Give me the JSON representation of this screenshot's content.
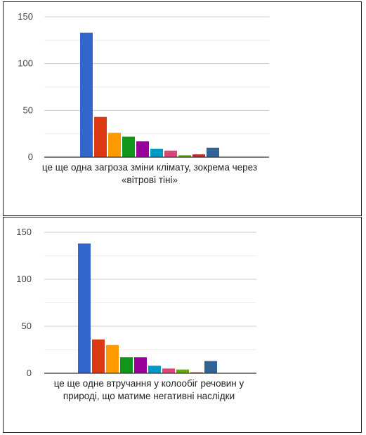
{
  "chart_data": [
    {
      "type": "bar",
      "category_label": [
        "це ще одна загроза зміни клімату, зокрема через",
        "«вітрові тіні»"
      ],
      "values": [
        133,
        43,
        26,
        22,
        17,
        9,
        7,
        2,
        3,
        10
      ],
      "ylim": [
        0,
        150
      ],
      "yticks": [
        0,
        50,
        100,
        150
      ],
      "colors": [
        "#3366cc",
        "#dc3912",
        "#ff9900",
        "#109618",
        "#990099",
        "#0099c6",
        "#dd4477",
        "#66aa00",
        "#b82e2e",
        "#316395"
      ],
      "grid": true
    },
    {
      "type": "bar",
      "category_label": [
        "це ще одне втручання у колообіг речовин у",
        "природі, що матиме негативні наслідки"
      ],
      "values": [
        138,
        36,
        30,
        17,
        17,
        8,
        5,
        4,
        1,
        13
      ],
      "ylim": [
        0,
        150
      ],
      "yticks": [
        0,
        50,
        100,
        150
      ],
      "colors": [
        "#3366cc",
        "#dc3912",
        "#ff9900",
        "#109618",
        "#990099",
        "#0099c6",
        "#dd4477",
        "#66aa00",
        "#b82e2e",
        "#316395"
      ],
      "grid": true
    }
  ]
}
